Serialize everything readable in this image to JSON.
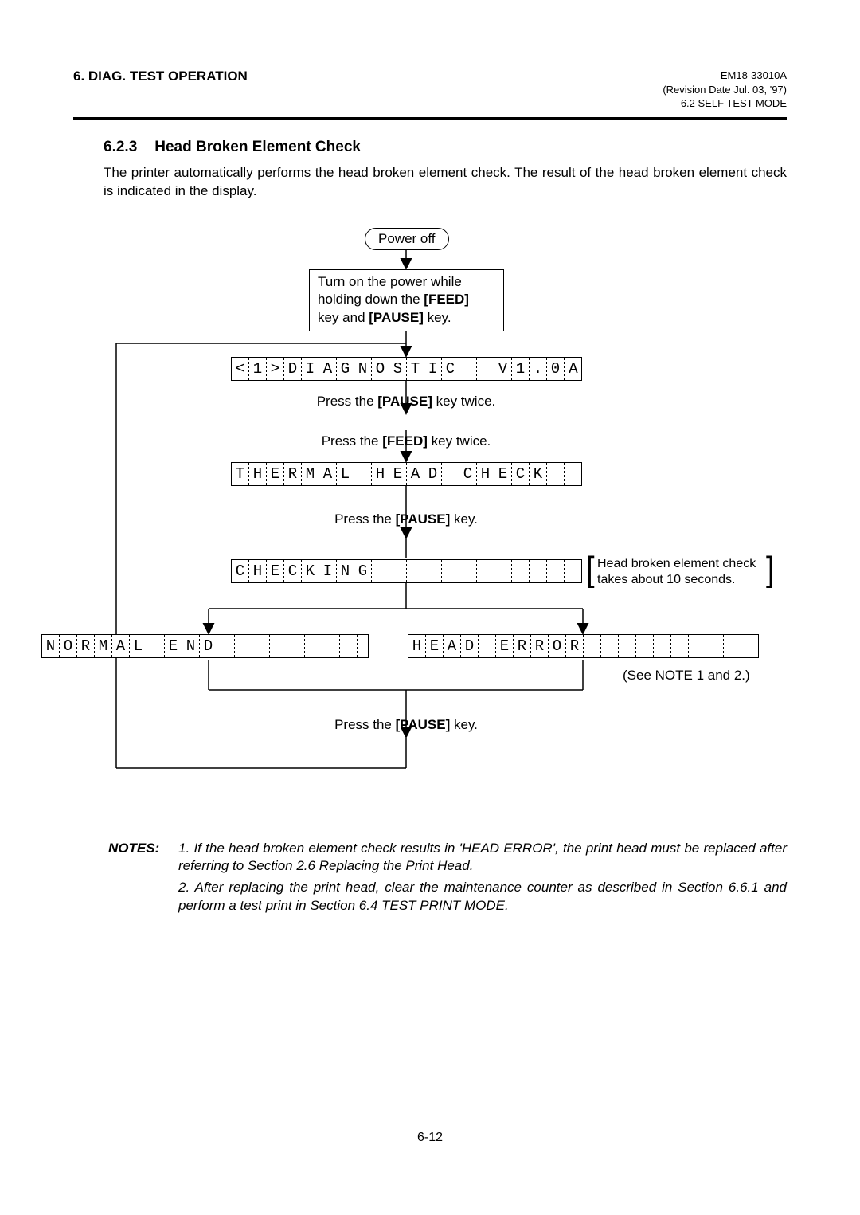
{
  "header": {
    "section": "6. DIAG. TEST OPERATION",
    "doc_id": "EM18-33010A",
    "revision": "(Revision Date Jul. 03, '97)",
    "subsection": "6.2 SELF TEST MODE"
  },
  "section": {
    "number": "6.2.3",
    "title": "Head Broken Element Check"
  },
  "intro": "The printer automatically performs the head broken element check.  The result of the head broken element check is indicated in the display.",
  "flow": {
    "power_off": "Power off",
    "turn_on_pre": "Turn on the power while",
    "turn_on_mid": "holding down the ",
    "feed_key": "[FEED]",
    "turn_on_and": "key and ",
    "pause_key": "[PAUSE]",
    "turn_on_end": " key.",
    "lcd_diag": [
      "<",
      "1",
      ">",
      "D",
      "I",
      "A",
      "G",
      "N",
      "O",
      "S",
      "T",
      "I",
      "C",
      " ",
      " ",
      "V",
      "1",
      ".",
      "0",
      "A"
    ],
    "press_pause_twice_pre": "Press the ",
    "press_pause_twice_post": " key twice.",
    "press_feed_twice_pre": "Press the ",
    "press_feed_twice_post": " key twice.",
    "lcd_thermal": [
      "T",
      "H",
      "E",
      "R",
      "M",
      "A",
      "L",
      " ",
      "H",
      "E",
      "A",
      "D",
      " ",
      "C",
      "H",
      "E",
      "C",
      "K",
      " ",
      " "
    ],
    "press_pause_pre": "Press the ",
    "press_pause_post": " key.",
    "lcd_checking": [
      "C",
      "H",
      "E",
      "C",
      "K",
      "I",
      "N",
      "G",
      " ",
      " ",
      " ",
      " ",
      " ",
      " ",
      " ",
      " ",
      " ",
      " ",
      " ",
      " "
    ],
    "bracket_line1": "Head broken element check",
    "bracket_line2": "takes about 10 seconds.",
    "lcd_normal": [
      "N",
      "O",
      "R",
      "M",
      "A",
      "L",
      " ",
      "E",
      "N",
      "D",
      " ",
      " ",
      " ",
      " ",
      " ",
      " ",
      " ",
      " ",
      " ",
      " "
    ],
    "lcd_error": [
      "H",
      "E",
      "A",
      "D",
      " ",
      "E",
      "R",
      "R",
      "O",
      "R",
      " ",
      " ",
      " ",
      " ",
      " ",
      " ",
      " ",
      " ",
      " ",
      " "
    ],
    "see_note": "(See NOTE 1 and 2.)",
    "press_pause2_pre": "Press the ",
    "press_pause2_post": " key."
  },
  "notes": {
    "label": "NOTES:",
    "item1": "1. If the head broken element check results in 'HEAD ERROR', the print head must be replaced after referring to Section 2.6 Replacing the Print Head.",
    "item2": "2. After replacing the print head, clear the maintenance counter as described in Section 6.6.1 and perform a test print in Section 6.4 TEST PRINT MODE."
  },
  "page_number": "6-12",
  "colors": {
    "text": "#000000",
    "bg": "#ffffff"
  }
}
